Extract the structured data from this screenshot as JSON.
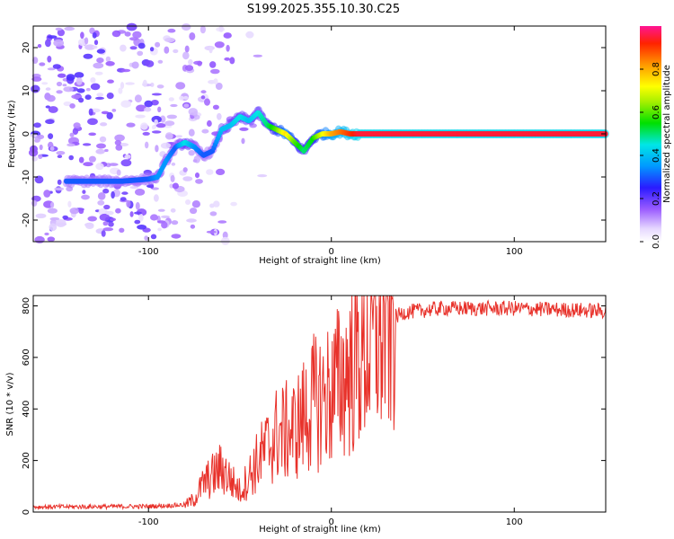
{
  "figure": {
    "title": "S199.2025.355.10.30.C25"
  },
  "chart_data": [
    {
      "type": "heatmap",
      "id": "spectrogram",
      "xlabel": "Height of straight line (km)",
      "ylabel": "Frequency (Hz)",
      "xlim": [
        -163,
        150
      ],
      "ylim": [
        -25,
        25
      ],
      "xticks": [
        -100,
        0,
        100
      ],
      "yticks": [
        -20,
        -10,
        0,
        10,
        20
      ],
      "colorbar": {
        "label": "Normalized spectral amplitude",
        "range": [
          0,
          1
        ],
        "ticks": [
          0.0,
          0.2,
          0.4,
          0.6,
          0.8
        ]
      },
      "ridge": {
        "x": [
          -145,
          -130,
          -115,
          -100,
          -95,
          -90,
          -85,
          -80,
          -75,
          -70,
          -65,
          -60,
          -55,
          -50,
          -45,
          -40,
          -35,
          -30,
          -25,
          -20,
          -15,
          -10,
          -5,
          0,
          5,
          10,
          15,
          150
        ],
        "y": [
          -11,
          -11,
          -11,
          -10.5,
          -10,
          -6,
          -3,
          -2,
          -3,
          -5,
          -4,
          1,
          2,
          4,
          3,
          5,
          2,
          1,
          0,
          -2,
          -4,
          -1,
          0,
          0,
          0.5,
          0,
          0,
          0
        ],
        "amplitude": [
          0.3,
          0.3,
          0.3,
          0.3,
          0.35,
          0.35,
          0.3,
          0.45,
          0.35,
          0.3,
          0.3,
          0.4,
          0.4,
          0.45,
          0.4,
          0.45,
          0.5,
          0.6,
          0.75,
          0.6,
          0.5,
          0.55,
          0.7,
          0.8,
          0.85,
          0.9,
          0.95,
          0.95
        ]
      }
    },
    {
      "type": "line",
      "id": "snr",
      "xlabel": "Height of straight line (km)",
      "ylabel": "SNR (10 * v/v)",
      "xlim": [
        -163,
        150
      ],
      "ylim": [
        0,
        840
      ],
      "xticks": [
        -100,
        0,
        100
      ],
      "yticks": [
        0,
        200,
        400,
        600,
        800
      ],
      "line_color": "#e8312a",
      "envelope": {
        "x": [
          -163,
          -100,
          -80,
          -75,
          -70,
          -60,
          -50,
          -40,
          -30,
          -20,
          -10,
          0,
          10,
          20,
          30,
          40,
          60,
          100,
          150
        ],
        "y": [
          20,
          22,
          28,
          50,
          110,
          170,
          80,
          200,
          300,
          320,
          420,
          460,
          560,
          650,
          740,
          775,
          790,
          790,
          780
        ]
      }
    }
  ]
}
